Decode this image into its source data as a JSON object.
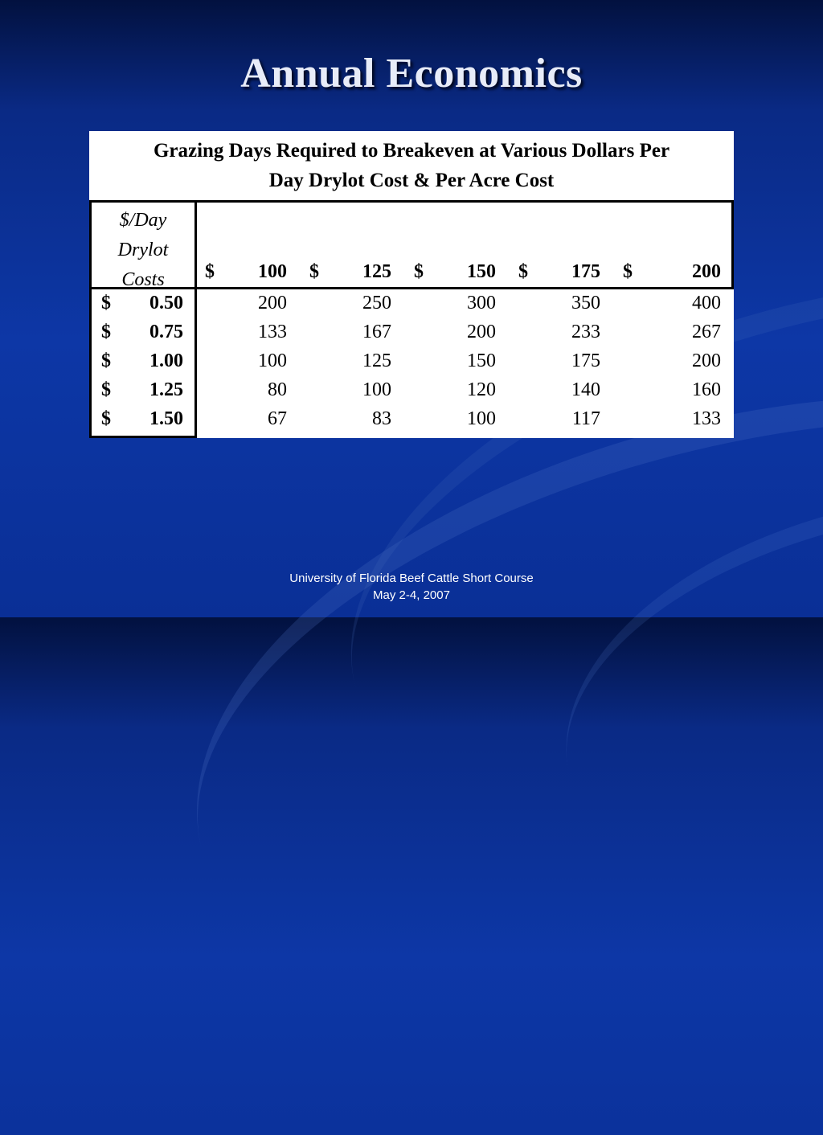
{
  "slide": {
    "title": "Annual Economics",
    "footer_line1": "University of Florida Beef Cattle Short Course",
    "footer_line2": "May 2-4, 2007"
  },
  "table": {
    "caption_line1": "Grazing Days Required to Breakeven at Various Dollars Per",
    "caption_line2": "Day Drylot Cost & Per Acre Cost",
    "row_header_line1": "$/Day",
    "row_header_line2": "Drylot",
    "row_header_line3": "Costs",
    "currency": "$",
    "columns": [
      "100",
      "125",
      "150",
      "175",
      "200"
    ],
    "rows": [
      {
        "label": "0.50",
        "values": [
          "200",
          "250",
          "300",
          "350",
          "400"
        ]
      },
      {
        "label": "0.75",
        "values": [
          "133",
          "167",
          "200",
          "233",
          "267"
        ]
      },
      {
        "label": "1.00",
        "values": [
          "100",
          "125",
          "150",
          "175",
          "200"
        ]
      },
      {
        "label": "1.25",
        "values": [
          "80",
          "100",
          "120",
          "140",
          "160"
        ]
      },
      {
        "label": "1.50",
        "values": [
          "67",
          "83",
          "100",
          "117",
          "133"
        ]
      }
    ]
  }
}
